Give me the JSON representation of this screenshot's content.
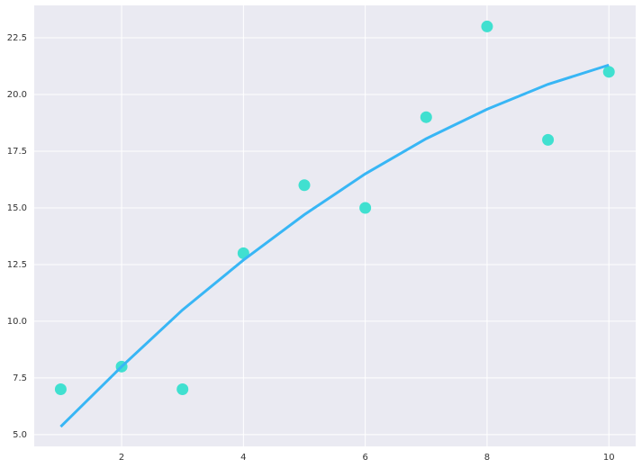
{
  "chart_data": {
    "type": "scatter",
    "grid": true,
    "xlim": [
      0.565,
      10.44
    ],
    "ylim": [
      4.48,
      23.93
    ],
    "xticks": [
      2,
      4,
      6,
      8,
      10
    ],
    "yticks": [
      {
        "value": 5,
        "label": "5.0"
      },
      {
        "value": 7.5,
        "label": "7.5"
      },
      {
        "value": 10,
        "label": "10.0"
      },
      {
        "value": 12.5,
        "label": "12.5"
      },
      {
        "value": 15,
        "label": "15.0"
      },
      {
        "value": 17.5,
        "label": "17.5"
      },
      {
        "value": 20,
        "label": "20.0"
      },
      {
        "value": 22.5,
        "label": "22.5"
      }
    ],
    "series": [
      {
        "type": "scatter",
        "color": "#40e0d0",
        "x": [
          1,
          2,
          3,
          4,
          5,
          6,
          7,
          8,
          9,
          10
        ],
        "values": [
          7,
          8,
          7,
          13,
          16,
          15,
          19,
          23,
          18,
          21
        ]
      },
      {
        "type": "line",
        "color": "#38b6f5",
        "x": [
          1,
          2,
          3,
          4,
          5,
          6,
          7,
          8,
          9,
          10
        ],
        "values": [
          5.35,
          8.0,
          10.5,
          12.7,
          14.7,
          16.5,
          18.05,
          19.35,
          20.45,
          21.3
        ]
      }
    ]
  }
}
